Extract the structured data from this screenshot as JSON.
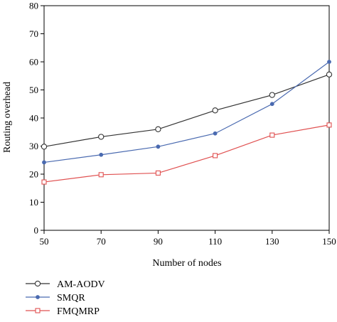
{
  "chart_data": {
    "type": "line",
    "title": "",
    "xlabel": "Number of nodes",
    "ylabel": "Routing overhead",
    "x": [
      50,
      70,
      90,
      110,
      130,
      150
    ],
    "xlim": [
      50,
      150
    ],
    "ylim": [
      0,
      80
    ],
    "xticks": [
      50,
      70,
      90,
      110,
      130,
      150
    ],
    "yticks": [
      0,
      10,
      20,
      30,
      40,
      50,
      60,
      70,
      80
    ],
    "grid": false,
    "legend_position": "bottom",
    "series": [
      {
        "name": "AM-AODV",
        "values": [
          29.8,
          33.3,
          36.0,
          42.7,
          48.2,
          55.5
        ],
        "color": "#333333",
        "marker": "circle-open"
      },
      {
        "name": "SMQR",
        "values": [
          24.2,
          26.9,
          29.8,
          34.5,
          45.0,
          60.0
        ],
        "color": "#4a6ab0",
        "marker": "dot"
      },
      {
        "name": "FMQMRP",
        "values": [
          17.2,
          19.8,
          20.4,
          26.6,
          33.9,
          37.5
        ],
        "color": "#e05050",
        "marker": "square-open"
      }
    ]
  }
}
